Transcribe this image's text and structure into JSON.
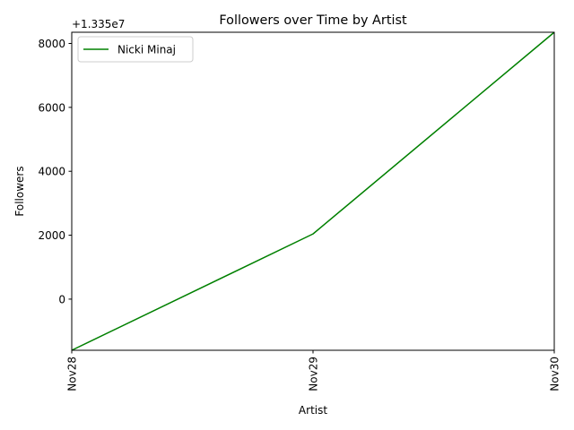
{
  "chart_data": {
    "type": "line",
    "title": "Followers over Time by Artist",
    "xlabel": "Artist",
    "ylabel": "Followers",
    "offset_label": "+1.335e7",
    "categories": [
      "Nov28",
      "Nov29",
      "Nov30"
    ],
    "y_offset": 13350000,
    "yticks": [
      0,
      2000,
      4000,
      6000,
      8000
    ],
    "ylim": [
      -1600,
      8350
    ],
    "series": [
      {
        "name": "Nicki Minaj",
        "color": "#008000",
        "values": [
          13348400,
          13352040,
          13358350
        ]
      }
    ],
    "legend_position": "upper-left",
    "grid": false
  }
}
